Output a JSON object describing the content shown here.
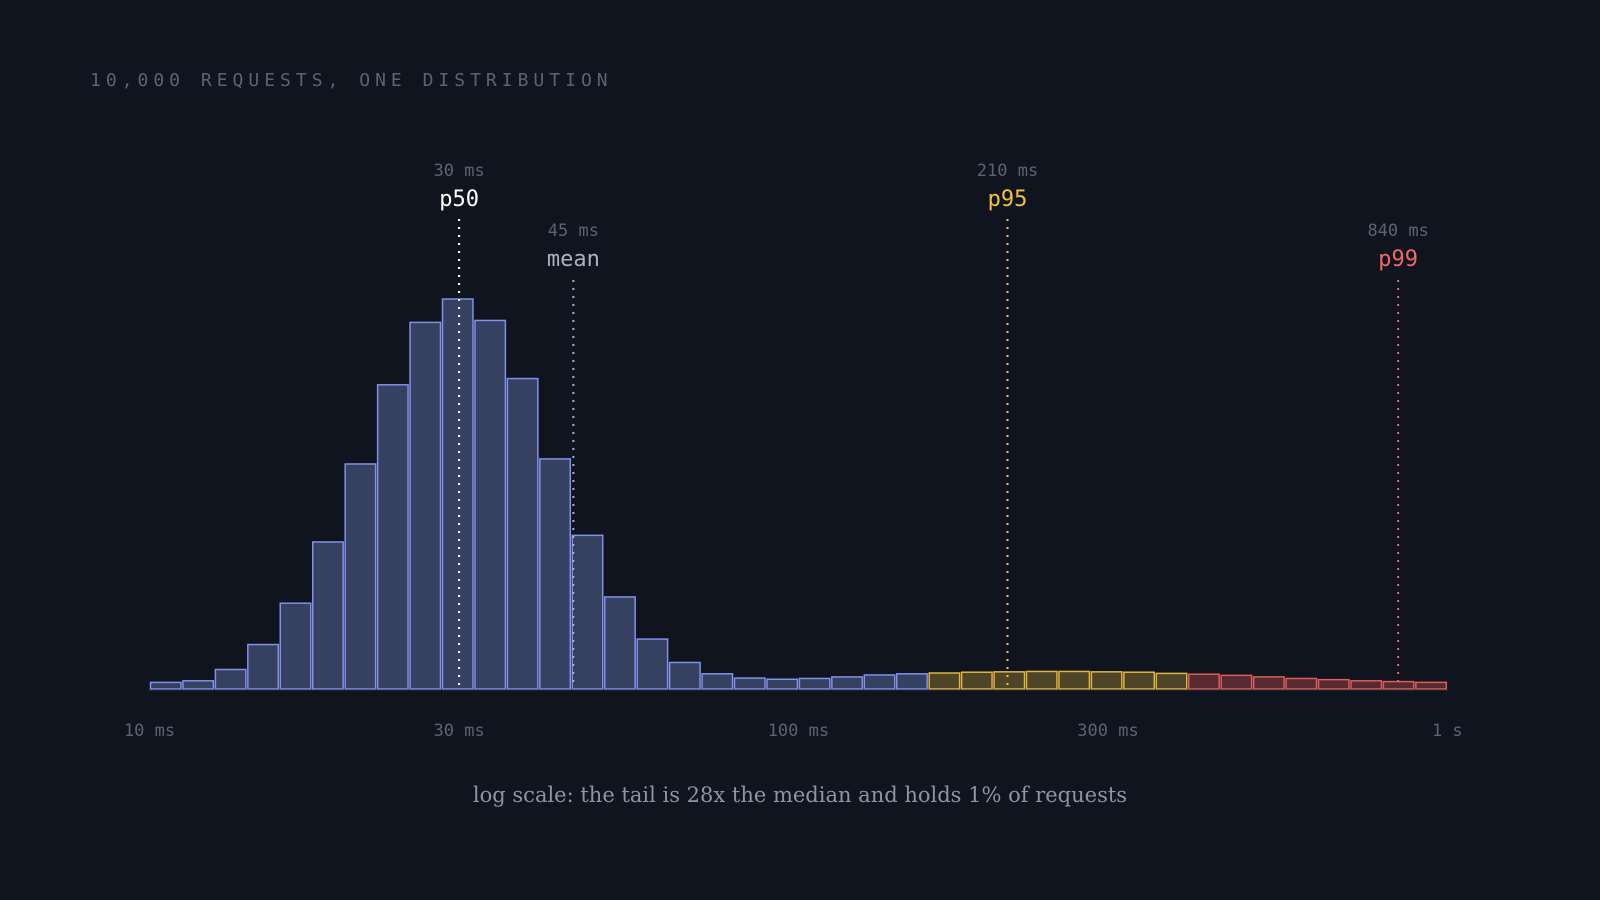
{
  "title": "10,000 REQUESTS, ONE DISTRIBUTION",
  "caption": "log scale: the tail is 28x the median and holds 1% of requests",
  "colors": {
    "background": "#10141e",
    "body_fill": "#364060",
    "body_stroke": "#8191e8",
    "p95_fill": "#4e4427",
    "p95_stroke": "#e1b43d",
    "p99_fill": "#562a30",
    "p99_stroke": "#dc5e5a",
    "axis_text": "#5b6273"
  },
  "chart_data": {
    "type": "bar",
    "x_scale": "log",
    "xlim_ms": [
      10,
      1000
    ],
    "ticks": [
      {
        "value": 10,
        "label": "10 ms"
      },
      {
        "value": 30,
        "label": "30 ms"
      },
      {
        "value": 100,
        "label": "100 ms"
      },
      {
        "value": 300,
        "label": "300 ms"
      },
      {
        "value": 1000,
        "label": "1 s"
      }
    ],
    "bins_per_decade": 20,
    "bin_start_ms": 10,
    "values": [
      0.017,
      0.021,
      0.05,
      0.114,
      0.22,
      0.377,
      0.577,
      0.78,
      0.94,
      1.0,
      0.945,
      0.796,
      0.59,
      0.394,
      0.236,
      0.128,
      0.068,
      0.039,
      0.028,
      0.025,
      0.027,
      0.031,
      0.036,
      0.039,
      0.041,
      0.043,
      0.044,
      0.045,
      0.045,
      0.044,
      0.043,
      0.04,
      0.038,
      0.035,
      0.031,
      0.027,
      0.024,
      0.021,
      0.019,
      0.017
    ],
    "regions": [
      {
        "name": "body",
        "from_bin": 0,
        "to_bin": 24,
        "color": "body"
      },
      {
        "name": "p95",
        "from_bin": 24,
        "to_bin": 32,
        "color": "p95"
      },
      {
        "name": "p99",
        "from_bin": 32,
        "to_bin": 40,
        "color": "p99"
      }
    ],
    "markers": [
      {
        "id": "p50",
        "label": "p50",
        "value_label": "30 ms",
        "value_ms": 30,
        "color": "#ffffff",
        "tier": 0
      },
      {
        "id": "mean",
        "label": "mean",
        "value_label": "45 ms",
        "value_ms": 45,
        "color": "#aab1c4",
        "tier": 1
      },
      {
        "id": "p95",
        "label": "p95",
        "value_label": "210 ms",
        "value_ms": 210,
        "color": "#f4bf42",
        "tier": 0
      },
      {
        "id": "p99",
        "label": "p99",
        "value_label": "840 ms",
        "value_ms": 840,
        "color": "#ec6a63",
        "tier": 1
      }
    ]
  }
}
